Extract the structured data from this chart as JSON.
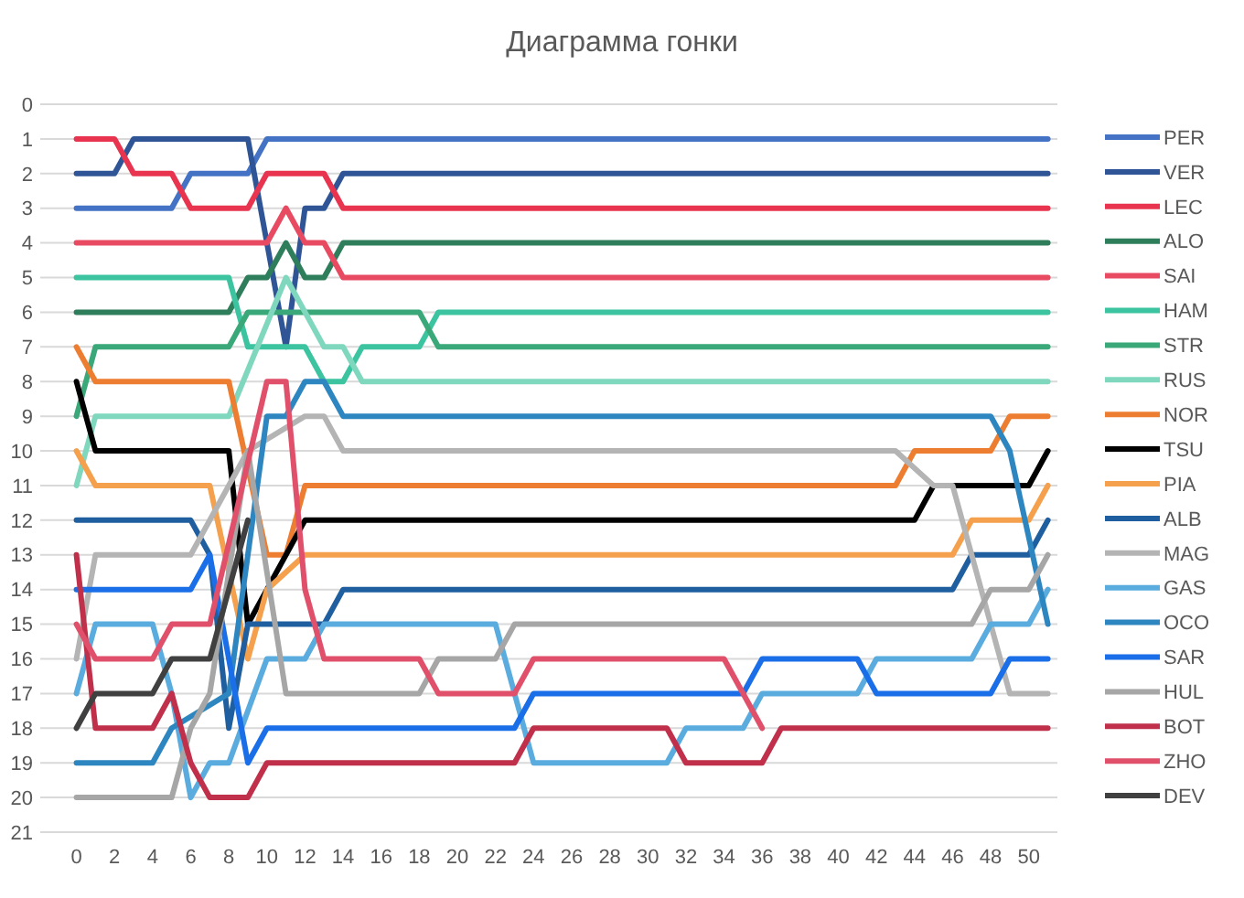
{
  "chart_data": {
    "type": "line",
    "title": "Диаграмма гонки",
    "xlim": [
      -1.9,
      51.5
    ],
    "ylim": [
      21,
      0
    ],
    "xticks": [
      0,
      2,
      4,
      6,
      8,
      10,
      12,
      14,
      16,
      18,
      20,
      22,
      24,
      26,
      28,
      30,
      32,
      34,
      36,
      38,
      40,
      42,
      44,
      46,
      48,
      50
    ],
    "yticks": [
      0,
      1,
      2,
      3,
      4,
      5,
      6,
      7,
      8,
      9,
      10,
      11,
      12,
      13,
      14,
      15,
      16,
      17,
      18,
      19,
      20,
      21
    ],
    "grid": "y",
    "legend": "right",
    "line_style": "solid",
    "marker": "none",
    "series": [
      {
        "name": "PER",
        "color": "#4472c4",
        "x": [
          0,
          5,
          6,
          9,
          10,
          51
        ],
        "values": [
          3,
          3,
          2,
          2,
          1,
          1
        ]
      },
      {
        "name": "VER",
        "color": "#2f5597",
        "x": [
          0,
          2,
          3,
          9,
          11,
          12,
          13,
          14,
          51
        ],
        "values": [
          2,
          2,
          1,
          1,
          7,
          3,
          3,
          2,
          2
        ]
      },
      {
        "name": "LEC",
        "color": "#e8344e",
        "x": [
          0,
          2,
          3,
          5,
          6,
          9,
          10,
          13,
          14,
          51
        ],
        "values": [
          1,
          1,
          2,
          2,
          3,
          3,
          2,
          2,
          3,
          3
        ]
      },
      {
        "name": "ALO",
        "color": "#2e7d5b",
        "x": [
          0,
          8,
          9,
          10,
          11,
          12,
          13,
          14,
          51
        ],
        "values": [
          6,
          6,
          5,
          5,
          4,
          5,
          5,
          4,
          4
        ]
      },
      {
        "name": "SAI",
        "color": "#e84a62",
        "x": [
          0,
          10,
          11,
          12,
          13,
          14,
          51
        ],
        "values": [
          4,
          4,
          3,
          4,
          4,
          5,
          5
        ]
      },
      {
        "name": "HAM",
        "color": "#3cc4a0",
        "x": [
          0,
          8,
          9,
          12,
          13,
          14,
          15,
          18,
          19,
          51
        ],
        "values": [
          5,
          5,
          7,
          7,
          8,
          8,
          7,
          7,
          6,
          6
        ]
      },
      {
        "name": "STR",
        "color": "#3aa878",
        "x": [
          0,
          1,
          8,
          9,
          18,
          19,
          51
        ],
        "values": [
          9,
          7,
          7,
          6,
          6,
          7,
          7
        ]
      },
      {
        "name": "RUS",
        "color": "#7fd8bd",
        "x": [
          0,
          1,
          8,
          11,
          12,
          13,
          14,
          15,
          51
        ],
        "values": [
          11,
          9,
          9,
          5,
          6,
          7,
          7,
          8,
          8
        ]
      },
      {
        "name": "NOR",
        "color": "#ed7d31",
        "x": [
          0,
          1,
          8,
          10,
          11,
          12,
          43,
          44,
          48,
          49,
          51
        ],
        "values": [
          7,
          8,
          8,
          13,
          13,
          11,
          11,
          10,
          10,
          9,
          9
        ]
      },
      {
        "name": "TSU",
        "color": "#000000",
        "x": [
          0,
          1,
          8,
          9,
          12,
          44,
          45,
          50,
          51
        ],
        "values": [
          8,
          10,
          10,
          15,
          12,
          12,
          11,
          11,
          10
        ]
      },
      {
        "name": "PIA",
        "color": "#f4a04c",
        "x": [
          0,
          1,
          7,
          9,
          10,
          12,
          46,
          47,
          50,
          51
        ],
        "values": [
          10,
          11,
          11,
          16,
          14,
          13,
          13,
          12,
          12,
          11
        ]
      },
      {
        "name": "ALB",
        "color": "#1f5fa0",
        "x": [
          0,
          6,
          7,
          8,
          9,
          13,
          14,
          46,
          47,
          50,
          51
        ],
        "values": [
          12,
          12,
          13,
          18,
          15,
          15,
          14,
          14,
          13,
          13,
          12
        ]
      },
      {
        "name": "MAG",
        "color": "#b4b4b4",
        "x": [
          0,
          1,
          6,
          9,
          12,
          13,
          14,
          43,
          45,
          46,
          49,
          51
        ],
        "values": [
          16,
          13,
          13,
          10,
          9,
          9,
          10,
          10,
          11,
          11,
          17,
          17
        ]
      },
      {
        "name": "GAS",
        "color": "#5aacdf",
        "x": [
          0,
          1,
          4,
          5,
          6,
          7,
          8,
          10,
          12,
          13,
          22,
          24,
          31,
          32,
          35,
          36,
          41,
          42,
          47,
          48,
          50,
          51
        ],
        "values": [
          17,
          15,
          15,
          17,
          20,
          19,
          19,
          16,
          16,
          15,
          15,
          19,
          19,
          18,
          18,
          17,
          17,
          16,
          16,
          15,
          15,
          14
        ]
      },
      {
        "name": "OCO",
        "color": "#2e86c1",
        "x": [
          0,
          4,
          5,
          8,
          10,
          11,
          12,
          13,
          14,
          48,
          49,
          51
        ],
        "values": [
          19,
          19,
          18,
          17,
          9,
          9,
          8,
          8,
          9,
          9,
          10,
          15
        ]
      },
      {
        "name": "SAR",
        "color": "#1a6fe8",
        "x": [
          0,
          6,
          7,
          9,
          10,
          23,
          24,
          35,
          36,
          41,
          42,
          48,
          49,
          51
        ],
        "values": [
          14,
          14,
          13,
          19,
          18,
          18,
          17,
          17,
          16,
          16,
          17,
          17,
          16,
          16
        ]
      },
      {
        "name": "HUL",
        "color": "#a6a6a6",
        "x": [
          0,
          5,
          6,
          7,
          9,
          11,
          18,
          19,
          22,
          23,
          47,
          48,
          50,
          51
        ],
        "values": [
          20,
          20,
          18,
          17,
          10,
          17,
          17,
          16,
          16,
          15,
          15,
          14,
          14,
          13
        ]
      },
      {
        "name": "BOT",
        "color": "#c0304a",
        "x": [
          0,
          1,
          4,
          5,
          6,
          7,
          9,
          10,
          23,
          24,
          31,
          32,
          36,
          37,
          51
        ],
        "values": [
          13,
          18,
          18,
          17,
          19,
          20,
          20,
          19,
          19,
          18,
          18,
          19,
          19,
          18,
          18
        ]
      },
      {
        "name": "ZHO",
        "color": "#e0506a",
        "x": [
          0,
          1,
          4,
          5,
          7,
          10,
          11,
          12,
          13,
          18,
          19,
          23,
          24,
          34,
          36
        ],
        "values": [
          15,
          16,
          16,
          15,
          15,
          8,
          8,
          14,
          16,
          16,
          17,
          17,
          16,
          16,
          18
        ]
      },
      {
        "name": "DEV",
        "color": "#404040",
        "x": [
          0,
          1,
          4,
          5,
          7,
          9
        ],
        "values": [
          18,
          17,
          17,
          16,
          16,
          12
        ]
      }
    ]
  }
}
